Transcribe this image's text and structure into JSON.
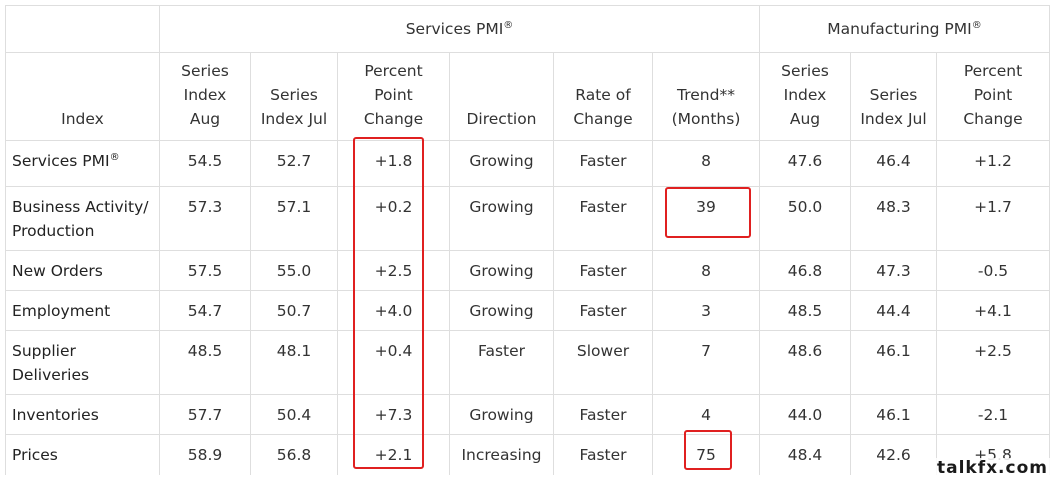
{
  "table": {
    "group_headers": {
      "services": "Services PMI",
      "manufacturing": "Manufacturing PMI",
      "registered_mark": "®"
    },
    "columns": {
      "index": "Index",
      "series_aug": "Series\nIndex\nAug",
      "series_jul": "Series\nIndex Jul",
      "percent_change": "Percent\nPoint\nChange",
      "direction": "Direction",
      "rate_of_change": "Rate of\nChange",
      "trend": "Trend**\n(Months)",
      "mfg_series_aug": "Series\nIndex\nAug",
      "mfg_series_jul": "Series\nIndex Jul",
      "mfg_percent_change": "Percent\nPoint\nChange"
    },
    "rows": [
      {
        "index": "Services PMI",
        "sup": "®",
        "aug": "54.5",
        "jul": "52.7",
        "change": "+1.8",
        "direction": "Growing",
        "rate": "Faster",
        "trend": "8",
        "mfg_aug": "47.6",
        "mfg_jul": "46.4",
        "mfg_change": "+1.2"
      },
      {
        "index": "Business Activity/\nProduction",
        "sup": "",
        "aug": "57.3",
        "jul": "57.1",
        "change": "+0.2",
        "direction": "Growing",
        "rate": "Faster",
        "trend": "39",
        "mfg_aug": "50.0",
        "mfg_jul": "48.3",
        "mfg_change": "+1.7"
      },
      {
        "index": "New Orders",
        "sup": "",
        "aug": "57.5",
        "jul": "55.0",
        "change": "+2.5",
        "direction": "Growing",
        "rate": "Faster",
        "trend": "8",
        "mfg_aug": "46.8",
        "mfg_jul": "47.3",
        "mfg_change": "-0.5"
      },
      {
        "index": "Employment",
        "sup": "",
        "aug": "54.7",
        "jul": "50.7",
        "change": "+4.0",
        "direction": "Growing",
        "rate": "Faster",
        "trend": "3",
        "mfg_aug": "48.5",
        "mfg_jul": "44.4",
        "mfg_change": "+4.1"
      },
      {
        "index": "Supplier\nDeliveries",
        "sup": "",
        "aug": "48.5",
        "jul": "48.1",
        "change": "+0.4",
        "direction": "Faster",
        "rate": "Slower",
        "trend": "7",
        "mfg_aug": "48.6",
        "mfg_jul": "46.1",
        "mfg_change": "+2.5"
      },
      {
        "index": "Inventories",
        "sup": "",
        "aug": "57.7",
        "jul": "50.4",
        "change": "+7.3",
        "direction": "Growing",
        "rate": "Faster",
        "trend": "4",
        "mfg_aug": "44.0",
        "mfg_jul": "46.1",
        "mfg_change": "-2.1"
      },
      {
        "index": "Prices",
        "sup": "",
        "aug": "58.9",
        "jul": "56.8",
        "change": "+2.1",
        "direction": "Increasing",
        "rate": "Faster",
        "trend": "75",
        "mfg_aug": "48.4",
        "mfg_jul": "42.6",
        "mfg_change": "+5.8"
      }
    ]
  },
  "annotations": {
    "highlight_color": "#e02020",
    "highlighted": [
      "percent_change column",
      "Business Activity/Production trend",
      "Prices trend"
    ]
  },
  "watermark": "talkfx.com"
}
